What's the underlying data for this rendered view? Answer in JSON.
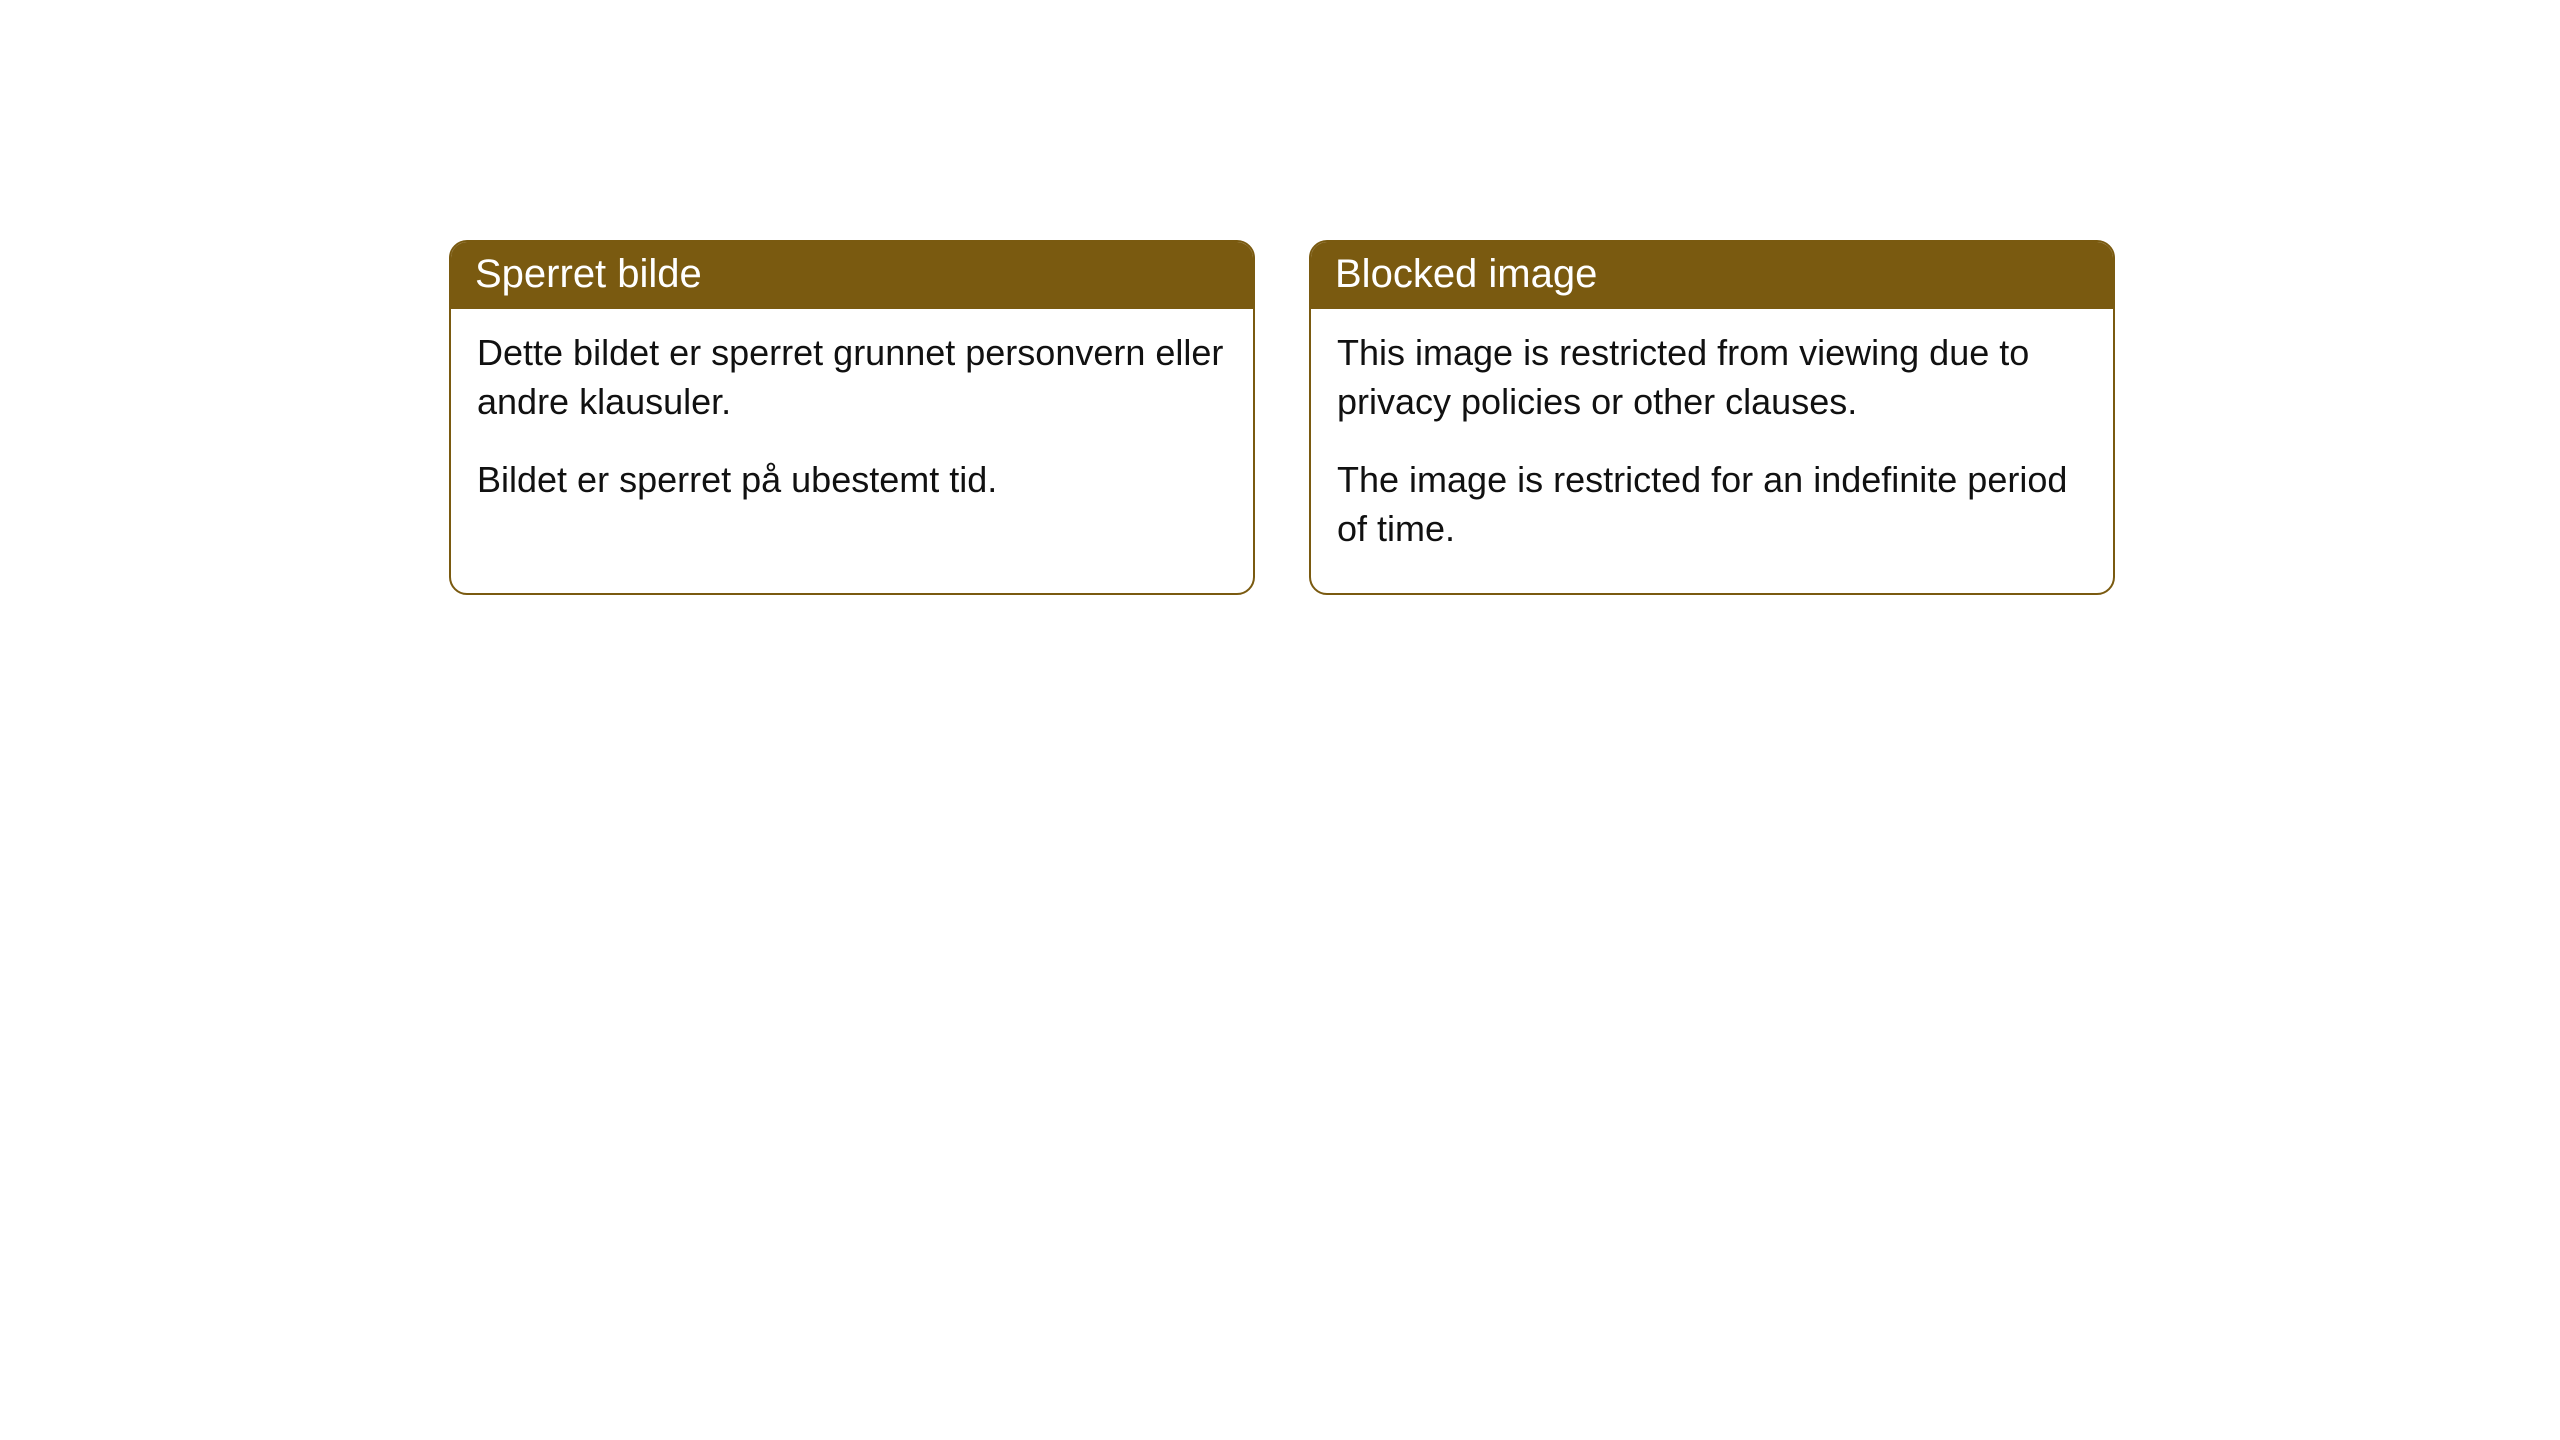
{
  "cards": [
    {
      "title": "Sperret bilde",
      "paragraph1": "Dette bildet er sperret grunnet personvern eller andre klausuler.",
      "paragraph2": "Bildet er sperret på ubestemt tid."
    },
    {
      "title": "Blocked image",
      "paragraph1": "This image is restricted from viewing due to privacy policies or other clauses.",
      "paragraph2": "The image is restricted for an indefinite period of time."
    }
  ],
  "style": {
    "header_background": "#7a5a10",
    "header_text_color": "#ffffff",
    "border_color": "#7a5a10",
    "body_background": "#ffffff",
    "body_text_color": "#111111",
    "border_radius": 18,
    "header_fontsize": 40,
    "body_fontsize": 36
  }
}
